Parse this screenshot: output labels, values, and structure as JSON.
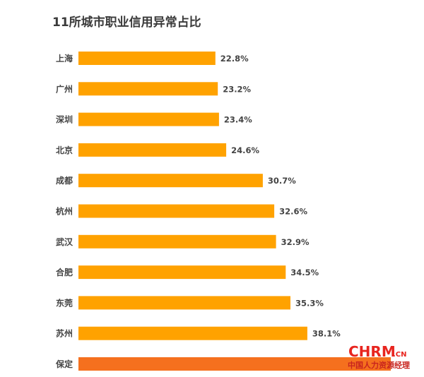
{
  "chart_data": {
    "type": "bar",
    "orientation": "horizontal",
    "title": "11所城市职业信用异常占比",
    "categories": [
      "上海",
      "广州",
      "深圳",
      "北京",
      "成都",
      "杭州",
      "武汉",
      "合肥",
      "东莞",
      "苏州",
      "保定"
    ],
    "values": [
      22.8,
      23.2,
      23.4,
      24.6,
      30.7,
      32.6,
      32.9,
      34.5,
      35.3,
      38.1,
      52.0
    ],
    "value_labels": [
      "22.8%",
      "23.2%",
      "23.4%",
      "24.6%",
      "30.7%",
      "32.6%",
      "32.9%",
      "34.5%",
      "35.3%",
      "38.1%",
      ""
    ],
    "unit": "%",
    "grid": false,
    "legend": "none",
    "colors": {
      "bar": "#FFA200",
      "highlight_bar": "#F5701E",
      "text": "#444444",
      "title": "#3A3A3A"
    },
    "highlight_category": "保定"
  },
  "watermark": {
    "brand": "CHRM",
    "suffix": ".CN",
    "subtitle": "中国人力资源经理",
    "color": "#E8251F"
  }
}
